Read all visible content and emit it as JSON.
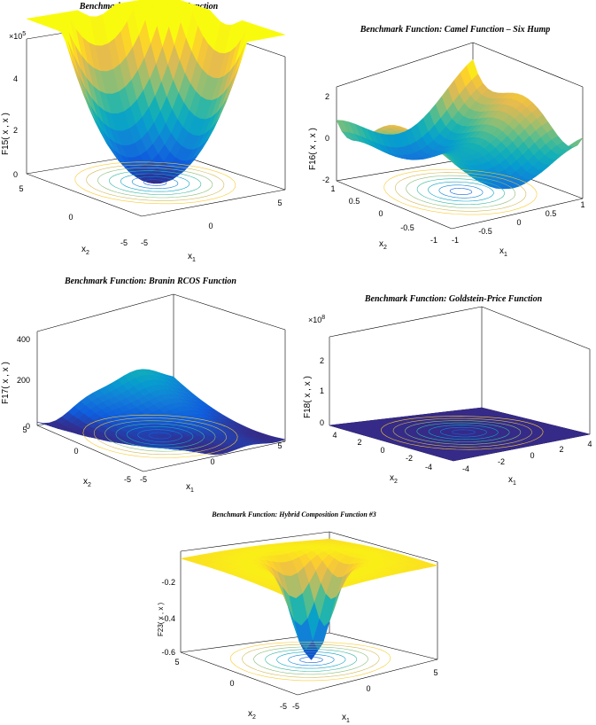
{
  "colors": {
    "surface_low": "#352a87",
    "surface_mid": "#1ab1b1",
    "surface_high": "#f9fb0e",
    "axis": "#000000"
  },
  "chart_data": [
    {
      "type": "surface3d",
      "title": "Benchmark Function: Brad Function",
      "xlabel": "x",
      "xlabel_sub": "1",
      "ylabel": "x",
      "ylabel_sub": "2",
      "zlabel": "F15( x , x )",
      "zlabel_sub1": "1",
      "zlabel_sub2": "2",
      "z_multiplier": "×10",
      "z_multiplier_exp": "5",
      "xlim": [
        -5,
        5
      ],
      "ylim": [
        -5,
        5
      ],
      "zlim": [
        0,
        5
      ],
      "x_ticks": [
        "-5",
        "0",
        "5"
      ],
      "y_ticks": [
        "-5",
        "0",
        "5"
      ],
      "z_ticks": [
        "0",
        "2",
        "4"
      ],
      "contours": true
    },
    {
      "type": "surface3d",
      "title": "Benchmark Function: Camel Function – Six Hump",
      "xlabel": "x",
      "xlabel_sub": "1",
      "ylabel": "x",
      "ylabel_sub": "2",
      "zlabel": "F16( x , x )",
      "zlabel_sub1": "1",
      "zlabel_sub2": "2",
      "xlim": [
        -1,
        1
      ],
      "ylim": [
        -1,
        1
      ],
      "zlim": [
        -2,
        3
      ],
      "x_ticks": [
        "-1",
        "-0.5",
        "0",
        "0.5",
        "1"
      ],
      "y_ticks": [
        "-1",
        "-0.5",
        "0",
        "0.5",
        "1"
      ],
      "z_ticks": [
        "-2",
        "0",
        "2"
      ],
      "contours": true
    },
    {
      "type": "surface3d",
      "title": "Benchmark Function: Branin RCOS  Function",
      "xlabel": "x",
      "xlabel_sub": "1",
      "ylabel": "x",
      "ylabel_sub": "2",
      "zlabel": "F17( x , x )",
      "zlabel_sub1": "1",
      "zlabel_sub2": "2",
      "xlim": [
        -5,
        5
      ],
      "ylim": [
        -5,
        5
      ],
      "zlim": [
        0,
        500
      ],
      "x_ticks": [
        "-5",
        "0",
        "5"
      ],
      "y_ticks": [
        "-5",
        "0",
        "5"
      ],
      "z_ticks": [
        "0",
        "200",
        "400"
      ],
      "contours": true
    },
    {
      "type": "surface3d",
      "title": "Benchmark Function: Goldstein-Price Function",
      "xlabel": "x",
      "xlabel_sub": "1",
      "ylabel": "x",
      "ylabel_sub": "2",
      "zlabel": "F18( x , x )",
      "zlabel_sub1": "1",
      "zlabel_sub2": "2",
      "z_multiplier": "×10",
      "z_multiplier_exp": "8",
      "xlim": [
        -4,
        4
      ],
      "ylim": [
        -4,
        4
      ],
      "zlim": [
        0,
        3
      ],
      "x_ticks": [
        "-4",
        "-2",
        "0",
        "2",
        "4"
      ],
      "y_ticks": [
        "-4",
        "-2",
        "0",
        "2",
        "4"
      ],
      "z_ticks": [
        "0",
        "1",
        "2"
      ],
      "contours": true
    },
    {
      "type": "surface3d",
      "title": "Benchmark Function: Hybrid Composition Function #3",
      "xlabel": "x",
      "xlabel_sub": "1",
      "ylabel": "x",
      "ylabel_sub": "2",
      "zlabel": "F23( x , x )",
      "zlabel_sub1": "1",
      "zlabel_sub2": "2",
      "xlim": [
        -5,
        5
      ],
      "ylim": [
        -5,
        5
      ],
      "zlim": [
        -0.6,
        -0.1
      ],
      "x_ticks": [
        "-5",
        "0",
        "5"
      ],
      "y_ticks": [
        "-5",
        "0",
        "5"
      ],
      "z_ticks": [
        "-0.6",
        "-0.4",
        "-0.2"
      ],
      "contours": true
    }
  ]
}
